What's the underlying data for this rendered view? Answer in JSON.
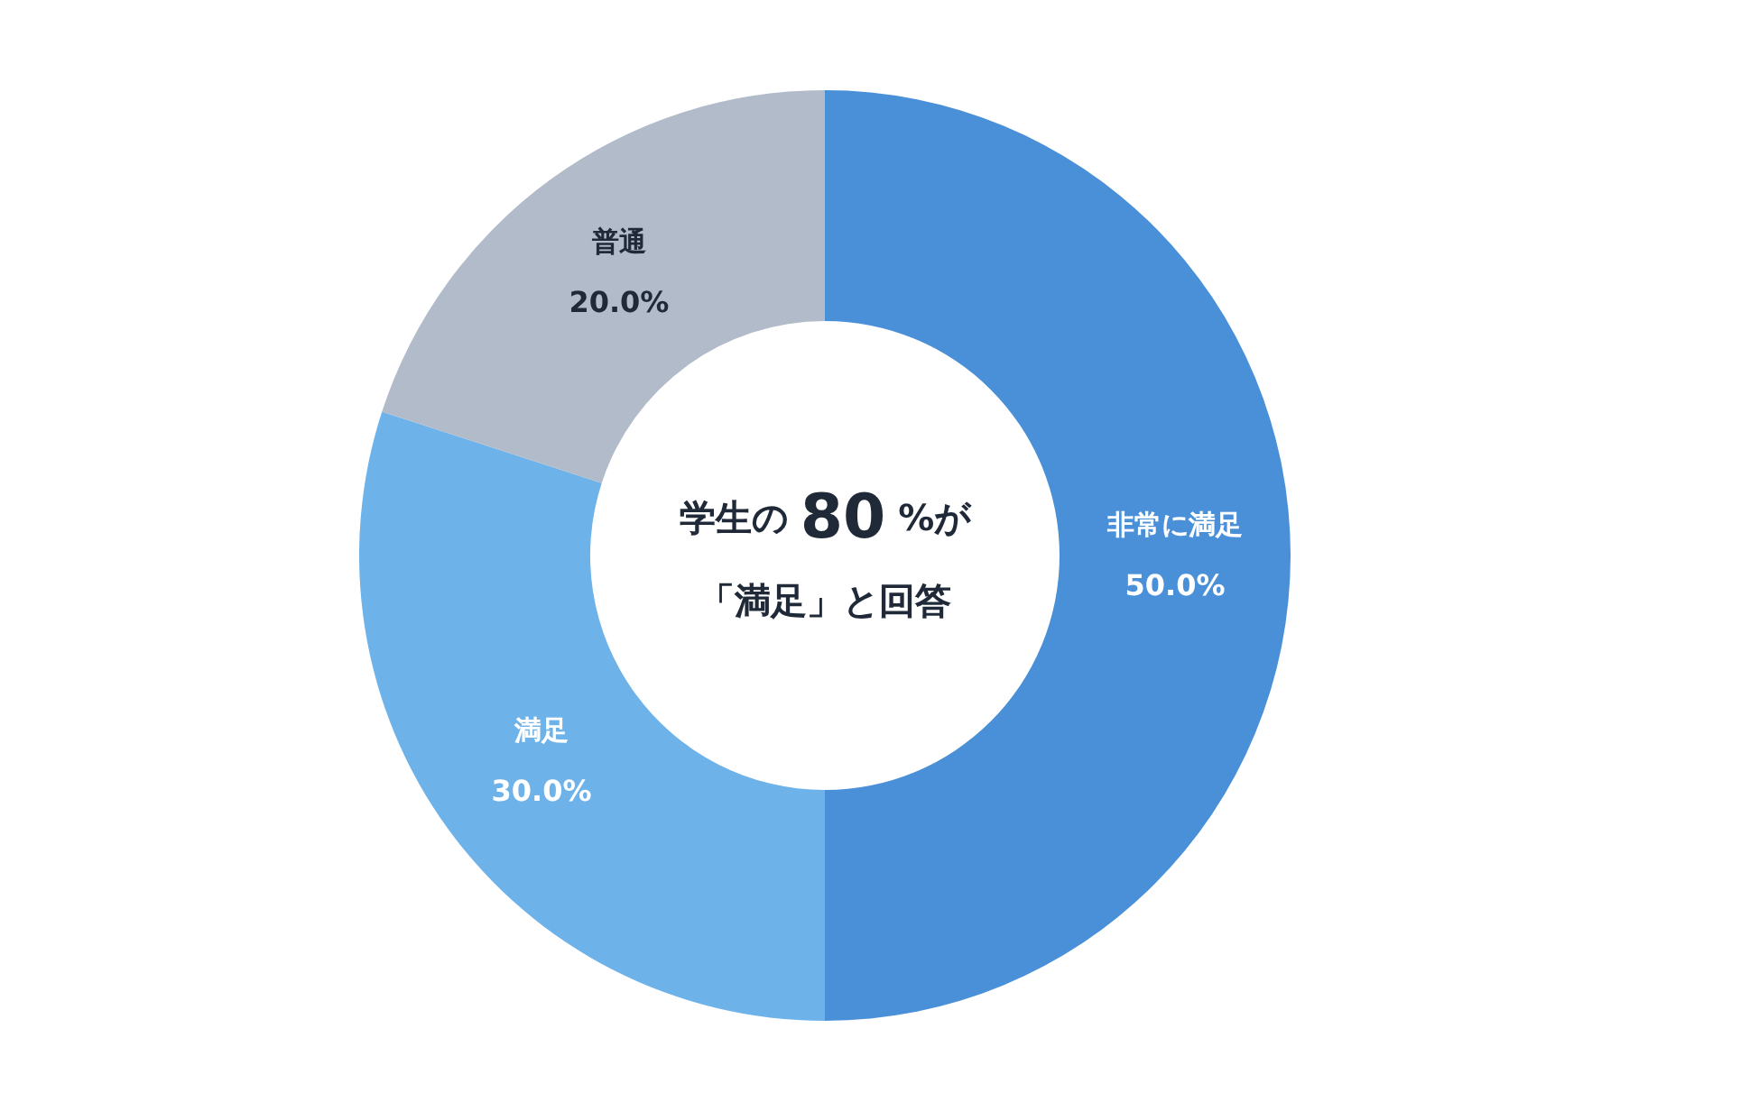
{
  "chart_data": {
    "type": "donut",
    "categories": [
      "非常に満足",
      "満足",
      "普通"
    ],
    "values": [
      50,
      30,
      20
    ],
    "colors": [
      "#4a90d8",
      "#6eb2ea",
      "#b1bbc9"
    ],
    "value_labels": [
      "50.0%",
      "30.0%",
      "20.0%"
    ],
    "annotations": [
      "学生の 80 %が",
      "「満足」と回答"
    ],
    "legend": false
  }
}
